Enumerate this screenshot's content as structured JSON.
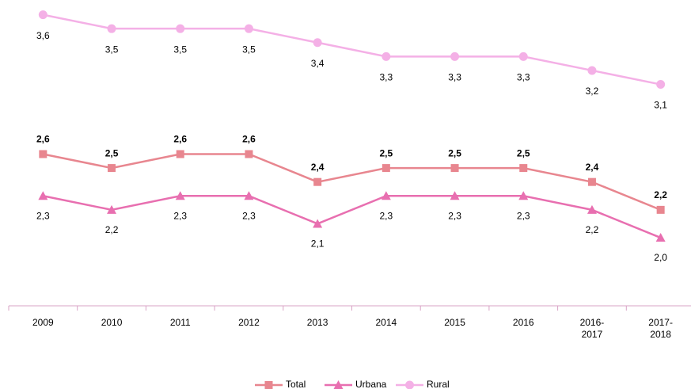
{
  "chart_data": {
    "type": "line",
    "categories": [
      "2009",
      "2010",
      "2011",
      "2012",
      "2013",
      "2014",
      "2015",
      "2016",
      "2016-2017",
      "2017-2018"
    ],
    "series": [
      {
        "name": "Total",
        "color": "#e8868f",
        "marker": "square",
        "bold_labels": true,
        "values": [
          2.6,
          2.5,
          2.6,
          2.6,
          2.4,
          2.5,
          2.5,
          2.5,
          2.4,
          2.2
        ],
        "value_labels": [
          "2,6",
          "2,5",
          "2,6",
          "2,6",
          "2,4",
          "2,5",
          "2,5",
          "2,5",
          "2,4",
          "2,2"
        ]
      },
      {
        "name": "Urbana",
        "color": "#e86fb0",
        "marker": "triangle",
        "bold_labels": false,
        "values": [
          2.3,
          2.2,
          2.3,
          2.3,
          2.1,
          2.3,
          2.3,
          2.3,
          2.2,
          2.0
        ],
        "value_labels": [
          "2,3",
          "2,2",
          "2,3",
          "2,3",
          "2,1",
          "2,3",
          "2,3",
          "2,3",
          "2,2",
          "2,0"
        ]
      },
      {
        "name": "Rural",
        "color": "#f4b0e6",
        "marker": "circle",
        "bold_labels": false,
        "values": [
          3.6,
          3.5,
          3.5,
          3.5,
          3.4,
          3.3,
          3.3,
          3.3,
          3.2,
          3.1
        ],
        "value_labels": [
          "3,6",
          "3,5",
          "3,5",
          "3,5",
          "3,4",
          "3,3",
          "3,3",
          "3,3",
          "3,2",
          "3,1"
        ]
      }
    ],
    "ylim": [
      1.5,
      3.7
    ],
    "legend": "bottom"
  }
}
